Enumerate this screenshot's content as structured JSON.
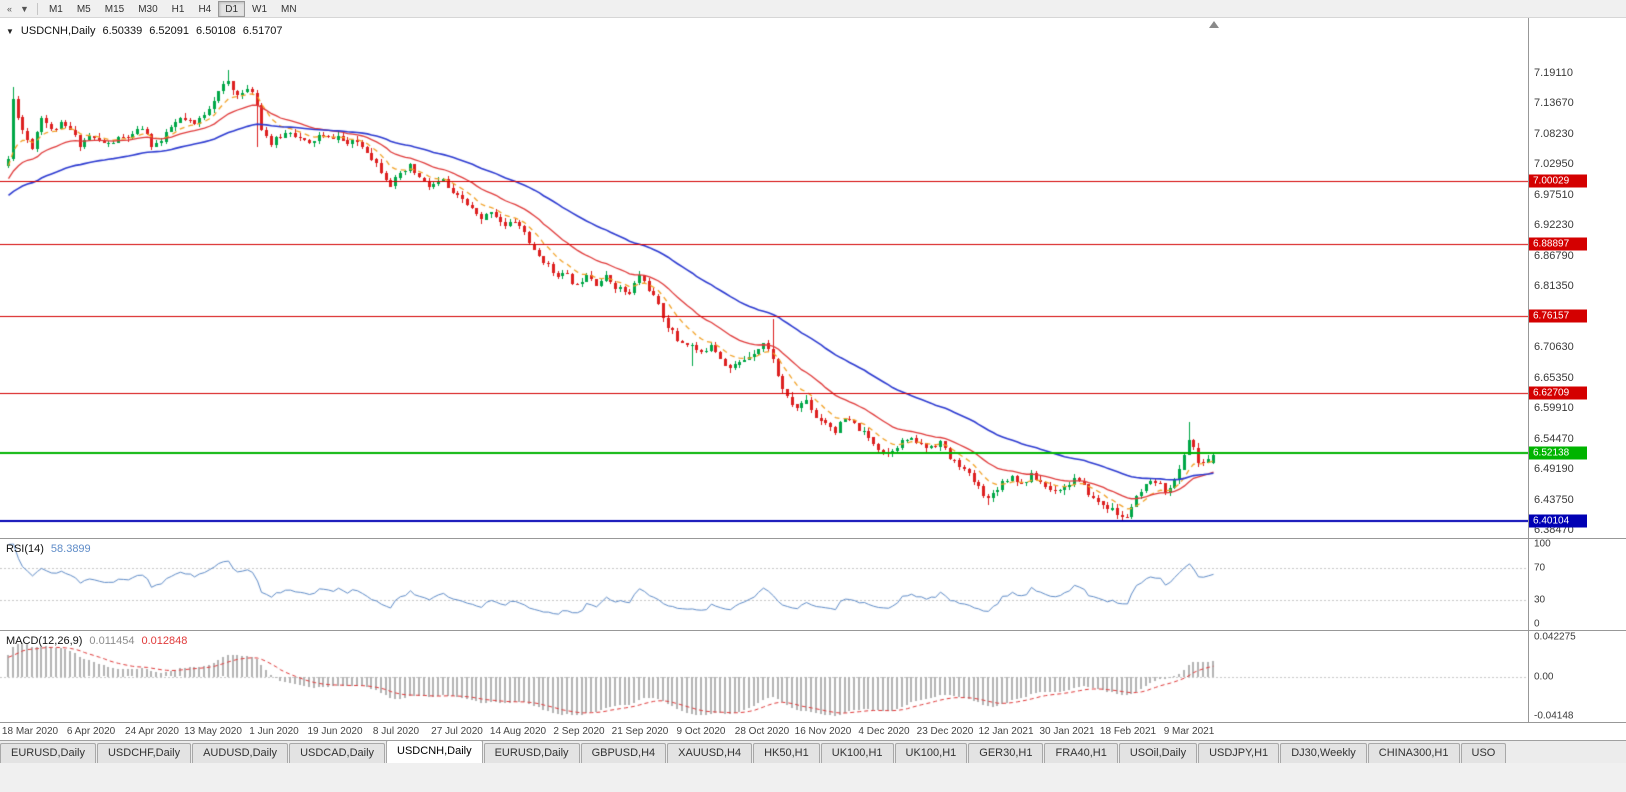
{
  "toolbar": {
    "icons": [
      {
        "name": "double-left-arrow-icon",
        "glyph": "«"
      },
      {
        "name": "caret-down-icon",
        "glyph": "▼"
      }
    ],
    "timeframes": [
      {
        "label": "M1"
      },
      {
        "label": "M5"
      },
      {
        "label": "M15"
      },
      {
        "label": "M30"
      },
      {
        "label": "H1"
      },
      {
        "label": "H4"
      },
      {
        "label": "D1",
        "active": true
      },
      {
        "label": "W1"
      },
      {
        "label": "MN"
      }
    ]
  },
  "chart": {
    "header": {
      "caret": "▼",
      "symbol": "USDCNH,Daily",
      "open": "6.50339",
      "high": "6.52091",
      "low": "6.50108",
      "close": "6.51707"
    }
  },
  "chart_data": {
    "type": "candlestick",
    "symbol": "USDCNH",
    "timeframe": "Daily",
    "price_ticks": [
      "7.19110",
      "7.13670",
      "7.08230",
      "7.02950",
      "6.97510",
      "6.92230",
      "6.86790",
      "6.81350",
      "6.76070",
      "6.70630",
      "6.65350",
      "6.59910",
      "6.54470",
      "6.49190",
      "6.43750",
      "6.38470"
    ],
    "date_labels": [
      "18 Mar 2020",
      "6 Apr 2020",
      "24 Apr 2020",
      "13 May 2020",
      "1 Jun 2020",
      "19 Jun 2020",
      "8 Jul 2020",
      "27 Jul 2020",
      "14 Aug 2020",
      "2 Sep 2020",
      "21 Sep 2020",
      "9 Oct 2020",
      "28 Oct 2020",
      "16 Nov 2020",
      "4 Dec 2020",
      "23 Dec 2020",
      "12 Jan 2021",
      "30 Jan 2021",
      "18 Feb 2021",
      "9 Mar 2021"
    ],
    "bars_per_date_label": 13,
    "horizontal_lines": [
      {
        "value": 7.00029,
        "label": "7.00029",
        "color": "#d40000",
        "width": 1
      },
      {
        "value": 6.88897,
        "label": "6.88897",
        "color": "#d40000",
        "width": 1
      },
      {
        "value": 6.76157,
        "label": "6.76157",
        "color": "#d40000",
        "width": 1
      },
      {
        "value": 6.62709,
        "label": "6.62709",
        "color": "#d40000",
        "width": 1
      },
      {
        "value": 6.52138,
        "label": "6.52138",
        "color": "#00b400",
        "width": 2
      },
      {
        "value": 6.40104,
        "label": "6.40104",
        "color": "#0000b4",
        "width": 2
      }
    ],
    "colors": {
      "up": "#00a747",
      "down": "#dd2020"
    },
    "moving_averages": [
      {
        "period": 8,
        "color": "#f2a227",
        "dashed": true
      },
      {
        "period": 20,
        "color": "#e03a3a",
        "dashed": false
      },
      {
        "period": 48,
        "color": "#2d3bd1",
        "dashed": false
      }
    ],
    "candle_count": 253,
    "anchors": [
      [
        0,
        7.04
      ],
      [
        1,
        7.145
      ],
      [
        3,
        7.09
      ],
      [
        5,
        7.06
      ],
      [
        7,
        7.115
      ],
      [
        9,
        7.09
      ],
      [
        11,
        7.1
      ],
      [
        13,
        7.09
      ],
      [
        15,
        7.065
      ],
      [
        17,
        7.08
      ],
      [
        19,
        7.07
      ],
      [
        21,
        7.065
      ],
      [
        23,
        7.075
      ],
      [
        26,
        7.08
      ],
      [
        28,
        7.095
      ],
      [
        30,
        7.065
      ],
      [
        32,
        7.07
      ],
      [
        34,
        7.095
      ],
      [
        36,
        7.11
      ],
      [
        39,
        7.1
      ],
      [
        41,
        7.12
      ],
      [
        43,
        7.145
      ],
      [
        45,
        7.168
      ],
      [
        46,
        7.175
      ],
      [
        47,
        7.16
      ],
      [
        49,
        7.155
      ],
      [
        51,
        7.16
      ],
      [
        52,
        7.135
      ],
      [
        53,
        7.095
      ],
      [
        55,
        7.065
      ],
      [
        57,
        7.08
      ],
      [
        59,
        7.09
      ],
      [
        61,
        7.075
      ],
      [
        63,
        7.065
      ],
      [
        65,
        7.08
      ],
      [
        67,
        7.075
      ],
      [
        69,
        7.08
      ],
      [
        71,
        7.065
      ],
      [
        73,
        7.07
      ],
      [
        75,
        7.055
      ],
      [
        78,
        7.02
      ],
      [
        80,
        6.995
      ],
      [
        82,
        7.01
      ],
      [
        84,
        7.025
      ],
      [
        86,
        7.005
      ],
      [
        88,
        6.99
      ],
      [
        91,
        7.002
      ],
      [
        93,
        6.975
      ],
      [
        95,
        6.968
      ],
      [
        97,
        6.95
      ],
      [
        99,
        6.93
      ],
      [
        101,
        6.95
      ],
      [
        104,
        6.92
      ],
      [
        106,
        6.93
      ],
      [
        108,
        6.91
      ],
      [
        110,
        6.875
      ],
      [
        112,
        6.86
      ],
      [
        114,
        6.84
      ],
      [
        117,
        6.832
      ],
      [
        119,
        6.815
      ],
      [
        121,
        6.84
      ],
      [
        123,
        6.82
      ],
      [
        125,
        6.83
      ],
      [
        127,
        6.815
      ],
      [
        130,
        6.8
      ],
      [
        132,
        6.835
      ],
      [
        134,
        6.81
      ],
      [
        136,
        6.78
      ],
      [
        138,
        6.745
      ],
      [
        140,
        6.72
      ],
      [
        143,
        6.71
      ],
      [
        145,
        6.695
      ],
      [
        147,
        6.715
      ],
      [
        149,
        6.69
      ],
      [
        151,
        6.67
      ],
      [
        153,
        6.68
      ],
      [
        156,
        6.7
      ],
      [
        158,
        6.715
      ],
      [
        160,
        6.69
      ],
      [
        161,
        6.655
      ],
      [
        163,
        6.615
      ],
      [
        165,
        6.6
      ],
      [
        167,
        6.615
      ],
      [
        169,
        6.585
      ],
      [
        171,
        6.575
      ],
      [
        173,
        6.56
      ],
      [
        175,
        6.58
      ],
      [
        177,
        6.57
      ],
      [
        179,
        6.555
      ],
      [
        182,
        6.53
      ],
      [
        184,
        6.52
      ],
      [
        186,
        6.535
      ],
      [
        188,
        6.545
      ],
      [
        190,
        6.54
      ],
      [
        192,
        6.53
      ],
      [
        195,
        6.54
      ],
      [
        197,
        6.51
      ],
      [
        199,
        6.5
      ],
      [
        201,
        6.48
      ],
      [
        203,
        6.46
      ],
      [
        205,
        6.44
      ],
      [
        207,
        6.46
      ],
      [
        208,
        6.47
      ],
      [
        210,
        6.48
      ],
      [
        212,
        6.465
      ],
      [
        214,
        6.48
      ],
      [
        216,
        6.47
      ],
      [
        218,
        6.455
      ],
      [
        221,
        6.46
      ],
      [
        223,
        6.475
      ],
      [
        225,
        6.46
      ],
      [
        227,
        6.44
      ],
      [
        229,
        6.43
      ],
      [
        231,
        6.42
      ],
      [
        233,
        6.405
      ],
      [
        234,
        6.41
      ],
      [
        236,
        6.44
      ],
      [
        238,
        6.46
      ],
      [
        240,
        6.47
      ],
      [
        242,
        6.455
      ],
      [
        244,
        6.47
      ],
      [
        245,
        6.49
      ],
      [
        246,
        6.52
      ],
      [
        247,
        6.545
      ],
      [
        248,
        6.53
      ],
      [
        249,
        6.5
      ],
      [
        250,
        6.505
      ],
      [
        251,
        6.51
      ],
      [
        252,
        6.517
      ]
    ],
    "wick_events": [
      {
        "i": 1,
        "high": 7.166
      },
      {
        "i": 46,
        "high": 7.196
      },
      {
        "i": 52,
        "low": 7.06
      },
      {
        "i": 143,
        "low": 6.675
      },
      {
        "i": 160,
        "high": 6.757
      },
      {
        "i": 205,
        "low": 6.428
      },
      {
        "i": 233,
        "low": 6.401
      },
      {
        "i": 247,
        "high": 6.575
      }
    ],
    "last_candle": {
      "open": 6.50339,
      "high": 6.52091,
      "low": 6.50108,
      "close": 6.51707
    },
    "warmup": {
      "start_price": 6.93,
      "bars": 26
    }
  },
  "rsi": {
    "name": "RSI(14)",
    "value": "58.3899",
    "period": 14,
    "color": "#5f8cc8",
    "axis_labels": [
      {
        "label": "100",
        "value": 100
      },
      {
        "label": "70",
        "value": 70
      },
      {
        "label": "30",
        "value": 30
      },
      {
        "label": "0",
        "value": 0
      }
    ],
    "dotted_levels": [
      70,
      30
    ]
  },
  "macd": {
    "name": "MACD(12,26,9)",
    "value_main": "0.011454",
    "value_signal": "0.012848",
    "fast": 12,
    "slow": 26,
    "signal": 9,
    "histogram_color": "#b4b4b4",
    "value_main_color": "#8c8c8c",
    "signal_color": "#e03a3a",
    "axis_labels": [
      {
        "label": "0.042275",
        "value": 0.042275
      },
      {
        "label": "0.00",
        "value": 0
      },
      {
        "label": "-0.04148",
        "value": -0.04148
      }
    ]
  },
  "tabs": [
    {
      "label": "EURUSD,Daily"
    },
    {
      "label": "USDCHF,Daily"
    },
    {
      "label": "AUDUSD,Daily"
    },
    {
      "label": "USDCAD,Daily"
    },
    {
      "label": "USDCNH,Daily",
      "active": true
    },
    {
      "label": "EURUSD,Daily"
    },
    {
      "label": "GBPUSD,H4"
    },
    {
      "label": "XAUUSD,H4"
    },
    {
      "label": "HK50,H1"
    },
    {
      "label": "UK100,H1"
    },
    {
      "label": "UK100,H1"
    },
    {
      "label": "GER30,H1"
    },
    {
      "label": "FRA40,H1"
    },
    {
      "label": "USOil,Daily"
    },
    {
      "label": "USDJPY,H1"
    },
    {
      "label": "DJ30,Weekly"
    },
    {
      "label": "CHINA300,H1"
    },
    {
      "label": "USO"
    }
  ]
}
